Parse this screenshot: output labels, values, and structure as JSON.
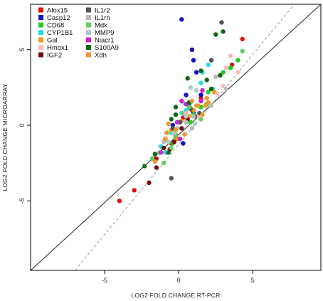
{
  "chart_data": {
    "type": "scatter",
    "xlabel": "LOG2 FOLD CHANGE RT-PCR",
    "ylabel": "LOG2 FOLD CHANGE MICROARRAY",
    "xlim": [
      -10,
      9.6
    ],
    "ylim": [
      -9.6,
      8
    ],
    "x_ticks": [
      -5,
      0,
      5
    ],
    "y_ticks": [
      -5,
      0,
      5
    ],
    "grid": false,
    "legend_position": "top-left",
    "reference_lines": [
      {
        "name": "identity",
        "style": "solid",
        "color": "#333333",
        "points": [
          [
            -10,
            -9.6
          ],
          [
            9.6,
            8
          ]
        ]
      },
      {
        "name": "regression",
        "style": "dashed",
        "color": "#9aa0b0",
        "points": [
          [
            -7,
            -9.6
          ],
          [
            7.8,
            8
          ]
        ]
      }
    ],
    "series": [
      {
        "name": "Alox15",
        "color": "#dd1111",
        "points": [
          [
            -4,
            -5
          ],
          [
            -3,
            -4.3
          ],
          [
            -1.5,
            -2.2
          ],
          [
            -0.5,
            -1.2
          ],
          [
            0.3,
            0.5
          ],
          [
            1.5,
            1.8
          ],
          [
            3.6,
            4
          ],
          [
            4.3,
            5.7
          ],
          [
            0.9,
            1
          ],
          [
            -0.2,
            -0.7
          ]
        ]
      },
      {
        "name": "Casp12",
        "color": "#1111cc",
        "points": [
          [
            0.2,
            7
          ],
          [
            0.9,
            5
          ],
          [
            1,
            4.3
          ],
          [
            1.2,
            3.5
          ],
          [
            0.5,
            2
          ],
          [
            1,
            0.8
          ],
          [
            0.3,
            -1.2
          ],
          [
            1.5,
            2
          ],
          [
            0.7,
            1.3
          ],
          [
            -0.4,
            0
          ]
        ]
      },
      {
        "name": "CD68",
        "color": "#22cc22",
        "points": [
          [
            4,
            4.3
          ],
          [
            3,
            3.5
          ],
          [
            1.5,
            1.2
          ],
          [
            -0.2,
            -0.8
          ],
          [
            1,
            0.7
          ],
          [
            2,
            2.2
          ],
          [
            0.8,
            0.2
          ],
          [
            -0.4,
            -1.2
          ],
          [
            1.9,
            1.4
          ],
          [
            3.5,
            3.8
          ]
        ]
      },
      {
        "name": "CYP1B1",
        "color": "#22dddd",
        "points": [
          [
            2,
            4
          ],
          [
            1.6,
            3.5
          ],
          [
            1.5,
            2.8
          ],
          [
            0.8,
            1.5
          ],
          [
            0.5,
            1
          ],
          [
            -0.5,
            -0.5
          ],
          [
            -0.9,
            -1.8
          ],
          [
            -1.2,
            -1.4
          ],
          [
            1.1,
            0.6
          ],
          [
            2.3,
            2.4
          ],
          [
            0.2,
            0.8
          ]
        ]
      },
      {
        "name": "Gal",
        "color": "#ee9922",
        "points": [
          [
            0.2,
            0.3
          ],
          [
            0.7,
            0.6
          ],
          [
            -0.1,
            -0.9
          ],
          [
            -0.8,
            -0.5
          ],
          [
            1,
            1
          ],
          [
            1.8,
            1.3
          ],
          [
            0.9,
            -0.2
          ],
          [
            1.3,
            1.3
          ],
          [
            -0.5,
            -0.3
          ],
          [
            2.4,
            2.2
          ],
          [
            0.4,
            0.8
          ]
        ]
      },
      {
        "name": "Hmox1",
        "color": "#ffbbbb",
        "points": [
          [
            3.5,
            4.6
          ],
          [
            4,
            3.5
          ],
          [
            3.2,
            3.8
          ],
          [
            0.5,
            0.8
          ],
          [
            2.6,
            2.1
          ],
          [
            3,
            2.6
          ],
          [
            1.3,
            0.6
          ],
          [
            -0.3,
            -0.6
          ]
        ]
      },
      {
        "name": "IGF2",
        "color": "#771111",
        "points": [
          [
            -1.5,
            -2.8
          ],
          [
            -0.3,
            -1.1
          ],
          [
            0.2,
            -0.2
          ],
          [
            -1,
            -1.5
          ],
          [
            -2,
            -3.8
          ],
          [
            -1.6,
            -2.3
          ],
          [
            -0.6,
            -1.6
          ],
          [
            0.6,
            0.4
          ]
        ]
      },
      {
        "name": "IL1r2",
        "color": "#555555",
        "points": [
          [
            2.9,
            6.8
          ],
          [
            2.2,
            4.3
          ],
          [
            -0.5,
            -3.5
          ],
          [
            0.8,
            1.1
          ],
          [
            0.1,
            0.2
          ],
          [
            1.1,
            0.6
          ],
          [
            -0.4,
            -0.2
          ],
          [
            1.4,
            0.8
          ]
        ]
      },
      {
        "name": "IL1rn",
        "color": "#bbbbbb",
        "points": [
          [
            2.5,
            3.2
          ],
          [
            1,
            0.6
          ],
          [
            0.5,
            0.2
          ],
          [
            -1,
            -1.1
          ],
          [
            3.2,
            2.4
          ],
          [
            2.2,
            1.3
          ],
          [
            -0.2,
            -0.6
          ],
          [
            0.9,
            -0.2
          ]
        ]
      },
      {
        "name": "Mdk",
        "color": "#66cc66",
        "points": [
          [
            -1,
            -2.5
          ],
          [
            -0.5,
            -1.5
          ],
          [
            -0.2,
            -0.6
          ],
          [
            0.7,
            1.2
          ],
          [
            -1.3,
            -1.8
          ],
          [
            -1.8,
            -2.2
          ],
          [
            4.3,
            4.9
          ],
          [
            1.5,
            0.4
          ]
        ]
      },
      {
        "name": "MMP9",
        "color": "#aacccc",
        "points": [
          [
            0.8,
            2.5
          ],
          [
            1.2,
            2.3
          ],
          [
            -0.3,
            -0.5
          ],
          [
            0.5,
            0.6
          ],
          [
            -0.7,
            -1.1
          ],
          [
            1.1,
            0.1
          ],
          [
            -0.1,
            -0.2
          ],
          [
            0.3,
            1.5
          ]
        ]
      },
      {
        "name": "Niacr1",
        "color": "#cc22cc",
        "points": [
          [
            -1.2,
            -1.8
          ],
          [
            0.5,
            1.4
          ],
          [
            0.2,
            1.6
          ],
          [
            1.6,
            2.3
          ],
          [
            1.5,
            1.6
          ],
          [
            0.1,
            -0.9
          ],
          [
            -0.1,
            0.2
          ]
        ]
      },
      {
        "name": "S100A9",
        "color": "#116611",
        "points": [
          [
            2.5,
            6
          ],
          [
            3,
            6.2
          ],
          [
            1.5,
            3.6
          ],
          [
            0.7,
            1.5
          ],
          [
            -0.2,
            1.2
          ],
          [
            -0.9,
            -0.9
          ],
          [
            -1.6,
            -1.9
          ],
          [
            2.8,
            3.3
          ],
          [
            1.9,
            3
          ],
          [
            0.6,
            3.1
          ],
          [
            -0.2,
            0.7
          ],
          [
            -0.5,
            0.4
          ],
          [
            -2.3,
            -2.7
          ],
          [
            -0.7,
            -1.8
          ],
          [
            2.2,
            2.4
          ]
        ]
      },
      {
        "name": "Xdh",
        "color": "#ee9933",
        "points": [
          [
            1.6,
            0.7
          ],
          [
            0.4,
            -0.6
          ],
          [
            -0.2,
            -0.3
          ],
          [
            -0.9,
            -0.9
          ],
          [
            0.9,
            1.6
          ],
          [
            1.9,
            1.8
          ],
          [
            -1.6,
            -2.4
          ],
          [
            -0.7,
            0.1
          ],
          [
            1.2,
            1.3
          ],
          [
            2,
            1.5
          ]
        ]
      }
    ]
  }
}
